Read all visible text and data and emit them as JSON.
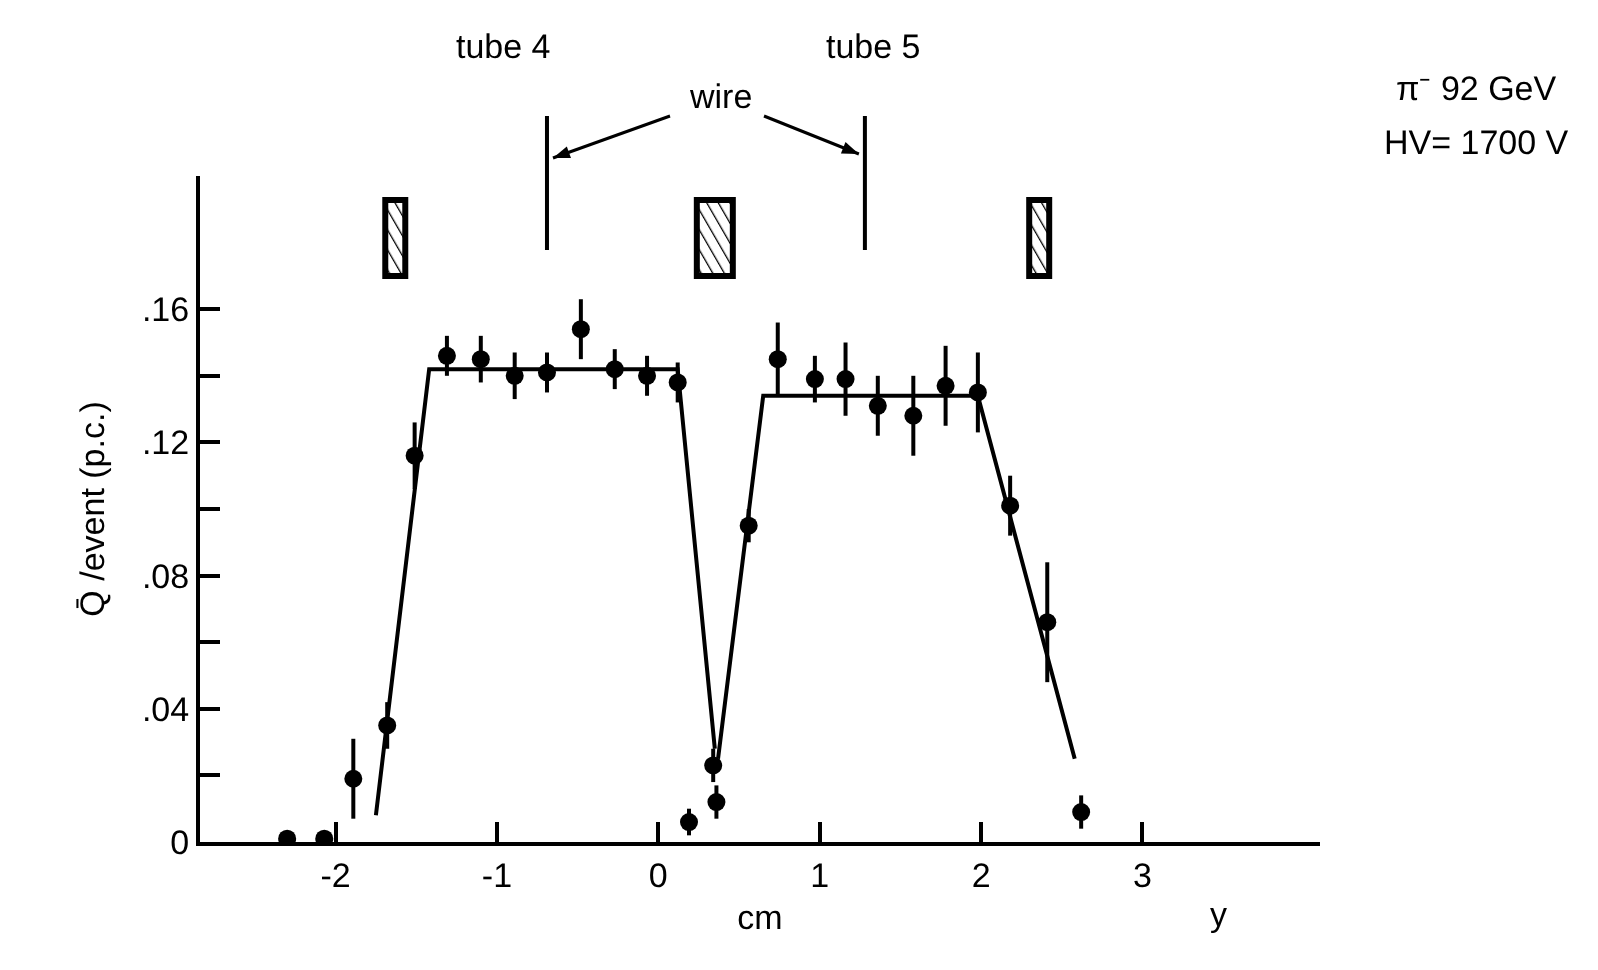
{
  "chart_data": {
    "type": "scatter",
    "xlabel": "cm",
    "ylabel": "Q̄ /event (p.c.)",
    "annotations": [
      "tube 4",
      "tube 5",
      "wire",
      "π⁻ 92 GeV",
      "HV= 1700 V",
      "y"
    ],
    "series": [
      {
        "color": "#000000",
        "marker": "circle",
        "x": [
          -2.3,
          -2.07,
          -1.89,
          -1.68,
          -1.51,
          -1.31,
          -1.1,
          -0.89,
          -0.69,
          -0.48,
          -0.27,
          -0.07,
          0.12,
          0.34
        ],
        "values": [
          0.001,
          0.001,
          0.019,
          0.035,
          0.116,
          0.146,
          0.145,
          0.14,
          0.141,
          0.154,
          0.142,
          0.14,
          0.138,
          0.023
        ],
        "errors": [
          null,
          null,
          0.012,
          0.007,
          0.01,
          0.006,
          0.007,
          0.007,
          0.006,
          0.009,
          0.006,
          0.006,
          0.006,
          0.005
        ]
      },
      {
        "color": "#000000",
        "marker": "circle",
        "x": [
          0.19,
          0.36,
          0.56,
          0.74,
          0.97,
          1.16,
          1.36,
          1.58,
          1.78,
          1.98,
          2.18,
          2.41,
          2.62
        ],
        "values": [
          0.006,
          0.012,
          0.095,
          0.145,
          0.139,
          0.139,
          0.131,
          0.128,
          0.137,
          0.135,
          0.101,
          0.066,
          0.009
        ],
        "errors": [
          0.004,
          0.005,
          0.005,
          0.011,
          0.007,
          0.011,
          0.009,
          0.012,
          0.012,
          0.012,
          0.009,
          0.018,
          0.005
        ]
      },
      {
        "type": "line",
        "color": "#000000",
        "marker": "none",
        "x": [
          -1.75,
          -1.42,
          0.12,
          0.35
        ],
        "values": [
          0.008,
          0.142,
          0.142,
          0.028
        ]
      },
      {
        "type": "line",
        "color": "#000000",
        "marker": "none",
        "x": [
          0.37,
          0.65,
          1.98,
          2.58
        ],
        "values": [
          0.025,
          0.134,
          0.134,
          0.025
        ]
      }
    ],
    "xlim": [
      -2.84,
      4.1
    ],
    "ylim": [
      0,
      0.2
    ],
    "xticks": [
      -2,
      -1,
      0,
      1,
      2,
      3
    ],
    "yticks": [
      0,
      {
        "value": 0.02,
        "label": null
      },
      {
        "value": 0.04,
        "label": ".04"
      },
      {
        "value": 0.06,
        "label": null
      },
      {
        "value": 0.08,
        "label": ".08"
      },
      {
        "value": 0.1,
        "label": null
      },
      {
        "value": 0.12,
        "label": ".12"
      },
      {
        "value": 0.14,
        "label": null
      },
      {
        "value": 0.16,
        "label": ".16"
      }
    ]
  }
}
